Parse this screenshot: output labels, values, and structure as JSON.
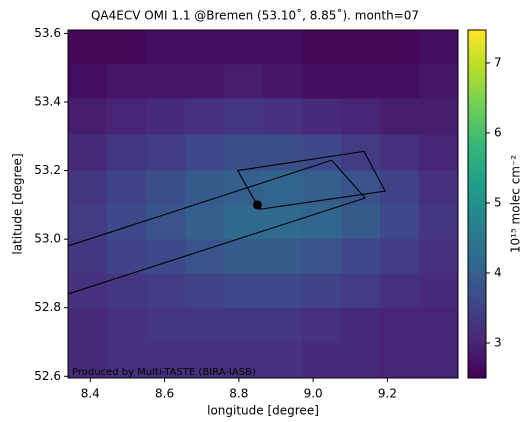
{
  "chart_data": {
    "type": "heatmap",
    "title": "QA4ECV OMI 1.1 @Bremen (53.10˚, 8.85˚). month=07",
    "x_label": "longitude [degree]",
    "y_label": "latitude [degree]",
    "colorbar_label": "10¹⁵ molec cm⁻²",
    "annotation": "Produced by Multi-TASTE (BIRA-IASB)",
    "colormap": "viridis",
    "xlim": [
      8.34,
      9.39
    ],
    "ylim": [
      52.595,
      53.61
    ],
    "xticks": [
      8.4,
      8.6,
      8.8,
      {
        "value": 9,
        "label": "9.0"
      },
      9.2
    ],
    "yticks": [
      52.6,
      52.8,
      {
        "value": 53,
        "label": "53.0"
      },
      53.2,
      53.4,
      53.6
    ],
    "clim": [
      2.5,
      7.47
    ],
    "cticks": [
      3,
      4,
      5,
      6,
      7
    ],
    "x": [
      8.39,
      8.5,
      8.6,
      8.71,
      8.81,
      8.92,
      9.02,
      9.13,
      9.23,
      9.34
    ],
    "y": [
      53.56,
      53.46,
      53.36,
      53.25,
      53.15,
      53.05,
      52.95,
      52.85,
      52.75,
      52.65
    ],
    "z": [
      [
        2.6,
        2.6,
        2.7,
        2.7,
        2.7,
        2.7,
        2.6,
        2.6,
        2.6,
        2.7
      ],
      [
        2.7,
        2.8,
        2.8,
        2.8,
        2.9,
        2.8,
        2.7,
        2.7,
        2.7,
        2.8
      ],
      [
        2.9,
        3.0,
        3.1,
        3.2,
        3.3,
        3.2,
        3.1,
        3.0,
        2.9,
        2.9
      ],
      [
        3.1,
        3.3,
        3.4,
        3.6,
        3.7,
        3.7,
        3.6,
        3.4,
        3.2,
        3.0
      ],
      [
        3.3,
        3.5,
        3.7,
        3.9,
        4.0,
        4.1,
        4.0,
        3.8,
        3.5,
        3.2
      ],
      [
        3.4,
        3.6,
        3.8,
        4.0,
        4.2,
        4.2,
        4.1,
        3.9,
        3.6,
        3.3
      ],
      [
        3.3,
        3.5,
        3.6,
        3.8,
        3.9,
        3.9,
        3.8,
        3.6,
        3.4,
        3.2
      ],
      [
        3.2,
        3.3,
        3.4,
        3.5,
        3.6,
        3.6,
        3.5,
        3.4,
        3.2,
        3.1
      ],
      [
        3.1,
        3.2,
        3.3,
        3.3,
        3.3,
        3.3,
        3.2,
        3.1,
        3.0,
        3.0
      ],
      [
        3.1,
        3.2,
        3.2,
        3.2,
        3.2,
        3.2,
        3.1,
        3.1,
        3.0,
        3.0
      ]
    ],
    "footprints": [
      {
        "lon": [
          8.34,
          9.05,
          9.14,
          8.34
        ],
        "lat": [
          52.98,
          53.23,
          53.12,
          52.84
        ]
      },
      {
        "lon": [
          8.797,
          9.137,
          9.194,
          8.856
        ],
        "lat": [
          53.2,
          53.256,
          53.14,
          53.087
        ]
      }
    ],
    "station": {
      "lon": 8.85,
      "lat": 53.1
    }
  }
}
